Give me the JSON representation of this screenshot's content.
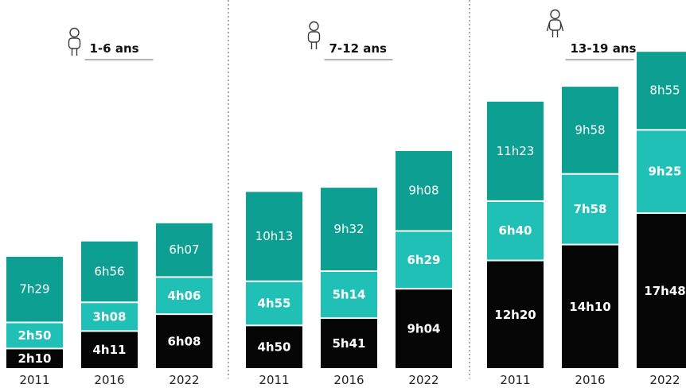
{
  "colors": {
    "base": "#050505",
    "middle": "#21C0B7",
    "top": "#0E9F93",
    "separator": "#555555",
    "baseText": "#ffffff",
    "middleText": "#ffffff",
    "topText": "#ffffff"
  },
  "chart_data": {
    "type": "bar",
    "stacked": true,
    "grid": false,
    "groups": [
      {
        "label": "1-6 ans",
        "bars": [
          {
            "year": "2011",
            "segments": [
              {
                "label": "2h10",
                "value": 2.1667
              },
              {
                "label": "2h50",
                "value": 2.8333
              },
              {
                "label": "7h29",
                "value": 7.4833
              }
            ]
          },
          {
            "year": "2016",
            "segments": [
              {
                "label": "4h11",
                "value": 4.1833
              },
              {
                "label": "3h08",
                "value": 3.1333
              },
              {
                "label": "6h56",
                "value": 6.9333
              }
            ]
          },
          {
            "year": "2022",
            "segments": [
              {
                "label": "6h08",
                "value": 6.1333
              },
              {
                "label": "4h06",
                "value": 4.1
              },
              {
                "label": "6h07",
                "value": 6.1167
              }
            ]
          }
        ]
      },
      {
        "label": "7-12 ans",
        "bars": [
          {
            "year": "2011",
            "segments": [
              {
                "label": "4h50",
                "value": 4.8333
              },
              {
                "label": "4h55",
                "value": 4.9167
              },
              {
                "label": "10h13",
                "value": 10.2167
              }
            ]
          },
          {
            "year": "2016",
            "segments": [
              {
                "label": "5h41",
                "value": 5.6833
              },
              {
                "label": "5h14",
                "value": 5.2333
              },
              {
                "label": "9h32",
                "value": 9.5333
              }
            ]
          },
          {
            "year": "2022",
            "segments": [
              {
                "label": "9h04",
                "value": 9.0667
              },
              {
                "label": "6h29",
                "value": 6.4833
              },
              {
                "label": "9h08",
                "value": 9.1333
              }
            ]
          }
        ]
      },
      {
        "label": "13-19 ans",
        "bars": [
          {
            "year": "2011",
            "segments": [
              {
                "label": "12h20",
                "value": 12.3333
              },
              {
                "label": "6h40",
                "value": 6.6667
              },
              {
                "label": "11h23",
                "value": 11.3833
              }
            ]
          },
          {
            "year": "2016",
            "segments": [
              {
                "label": "14h10",
                "value": 14.1667
              },
              {
                "label": "7h58",
                "value": 7.9667
              },
              {
                "label": "9h58",
                "value": 9.9667
              }
            ]
          },
          {
            "year": "2022",
            "segments": [
              {
                "label": "17h48",
                "value": 17.8
              },
              {
                "label": "9h25",
                "value": 9.4167
              },
              {
                "label": "8h55",
                "value": 8.9167
              }
            ]
          }
        ]
      }
    ]
  }
}
